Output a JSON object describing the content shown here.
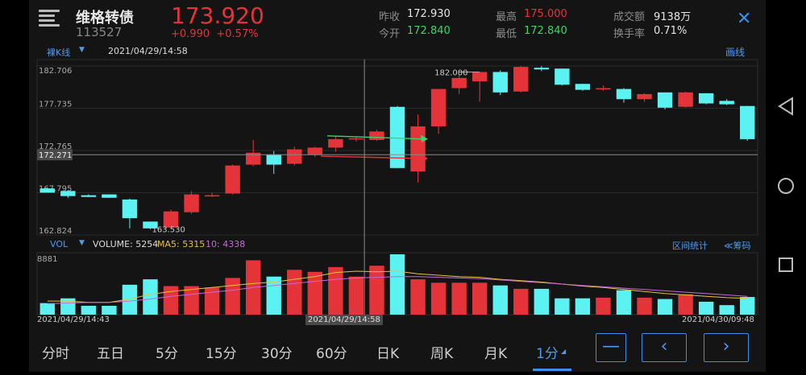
{
  "stock": {
    "name": "维格转债",
    "code": "113527",
    "price": "173.920",
    "change": "+0.990",
    "change_pct": "+0.57%"
  },
  "quote": {
    "prev_close_label": "昨收",
    "prev_close": "172.930",
    "open_label": "今开",
    "open": "172.840",
    "high_label": "最高",
    "high": "175.000",
    "low_label": "最低",
    "low": "172.840",
    "volume_label": "成交额",
    "volume": "9138万",
    "turnover_label": "换手率",
    "turnover": "0.71%"
  },
  "chart_toolbar": {
    "kline_type": "裸K线",
    "crosshair_time": "2021/04/29/14:58",
    "draw_label": "画线"
  },
  "price_axis": {
    "ticks": [
      "182.706",
      "177.735",
      "172.765",
      "167.795",
      "162.824"
    ],
    "crosshair_value": "172.271",
    "high_annotation": "182.000",
    "low_annotation": "163.530"
  },
  "volume_toolbar": {
    "label": "VOL",
    "volume_text": "VOLUME: 5254",
    "ma5_text": "MA5: 5315",
    "ma10_text": "10: 4338",
    "interval_stats": "区间统计",
    "chips": "≪筹码",
    "max_tick": "8881"
  },
  "time_axis": {
    "start": "2021/04/29/14:43",
    "cursor": "2021/04/29/14:58",
    "end": "2021/04/30/09:48"
  },
  "period_tabs": [
    "分时",
    "五日",
    "5分",
    "15分",
    "30分",
    "60分",
    "日K",
    "周K",
    "月K",
    "1分"
  ],
  "active_tab": "1分",
  "colors": {
    "up": "#e5333a",
    "down": "#5cf2f2",
    "accent": "#3b8eea",
    "ma5": "#e8c23a",
    "ma10": "#c86ad8"
  },
  "icons": {
    "menu": "menu-icon",
    "close": "close-icon",
    "zoom_out": "minus-icon",
    "prev": "chevron-left-icon",
    "next": "chevron-right-icon",
    "sys_back": "back-triangle-icon",
    "sys_home": "home-circle-icon",
    "sys_recent": "recent-square-icon"
  },
  "chart_data": {
    "type": "candlestick",
    "price_range": [
      162.824,
      182.706
    ],
    "volume_max": 8881,
    "candles": [
      {
        "o": 168.3,
        "c": 167.8,
        "h": 168.3,
        "l": 167.8,
        "v": 1700
      },
      {
        "o": 168.0,
        "c": 167.4,
        "h": 168.1,
        "l": 167.2,
        "v": 2400
      },
      {
        "o": 167.5,
        "c": 167.3,
        "h": 167.6,
        "l": 167.3,
        "v": 1300
      },
      {
        "o": 167.6,
        "c": 167.2,
        "h": 167.6,
        "l": 167.2,
        "v": 1300
      },
      {
        "o": 167.0,
        "c": 164.8,
        "h": 167.1,
        "l": 163.6,
        "v": 4400
      },
      {
        "o": 164.4,
        "c": 163.6,
        "h": 164.4,
        "l": 163.5,
        "v": 5200
      },
      {
        "o": 163.7,
        "c": 165.6,
        "h": 165.8,
        "l": 163.6,
        "v": 4200
      },
      {
        "o": 165.5,
        "c": 167.6,
        "h": 168.0,
        "l": 165.3,
        "v": 4200
      },
      {
        "o": 167.5,
        "c": 167.5,
        "h": 167.8,
        "l": 167.3,
        "v": 4000
      },
      {
        "o": 167.7,
        "c": 171.0,
        "h": 171.1,
        "l": 167.6,
        "v": 5400
      },
      {
        "o": 171.1,
        "c": 172.5,
        "h": 174.0,
        "l": 170.9,
        "v": 8000
      },
      {
        "o": 172.3,
        "c": 171.1,
        "h": 172.7,
        "l": 170.0,
        "v": 5600
      },
      {
        "o": 171.2,
        "c": 172.9,
        "h": 173.2,
        "l": 171.0,
        "v": 6600
      },
      {
        "o": 172.3,
        "c": 173.1,
        "h": 173.2,
        "l": 172.0,
        "v": 6300
      },
      {
        "o": 173.1,
        "c": 174.1,
        "h": 174.4,
        "l": 172.6,
        "v": 7000
      },
      {
        "o": 174.1,
        "c": 174.2,
        "h": 174.3,
        "l": 173.8,
        "v": 5600
      },
      {
        "o": 174.0,
        "c": 175.0,
        "h": 175.2,
        "l": 173.9,
        "v": 7200
      },
      {
        "o": 177.9,
        "c": 170.7,
        "h": 178.0,
        "l": 170.7,
        "v": 8881
      },
      {
        "o": 170.3,
        "c": 175.6,
        "h": 177.0,
        "l": 169.0,
        "v": 5200
      },
      {
        "o": 175.6,
        "c": 180.0,
        "h": 180.0,
        "l": 174.7,
        "v": 4700
      },
      {
        "o": 180.1,
        "c": 181.3,
        "h": 181.7,
        "l": 179.4,
        "v": 4700
      },
      {
        "o": 180.9,
        "c": 182.0,
        "h": 182.0,
        "l": 178.5,
        "v": 4700
      },
      {
        "o": 182.0,
        "c": 179.6,
        "h": 182.2,
        "l": 179.3,
        "v": 4300
      },
      {
        "o": 179.7,
        "c": 182.6,
        "h": 182.7,
        "l": 179.6,
        "v": 3800
      },
      {
        "o": 182.5,
        "c": 182.3,
        "h": 182.7,
        "l": 182.1,
        "v": 3800
      },
      {
        "o": 182.4,
        "c": 180.5,
        "h": 182.4,
        "l": 180.4,
        "v": 2400
      },
      {
        "o": 180.6,
        "c": 179.9,
        "h": 180.6,
        "l": 179.8,
        "v": 2400
      },
      {
        "o": 180.1,
        "c": 180.1,
        "h": 180.4,
        "l": 179.8,
        "v": 2500
      },
      {
        "o": 180.0,
        "c": 178.8,
        "h": 180.1,
        "l": 178.4,
        "v": 3600
      },
      {
        "o": 178.8,
        "c": 179.4,
        "h": 179.5,
        "l": 178.5,
        "v": 2500
      },
      {
        "o": 179.6,
        "c": 177.8,
        "h": 179.6,
        "l": 177.6,
        "v": 2300
      },
      {
        "o": 177.9,
        "c": 179.6,
        "h": 179.7,
        "l": 177.8,
        "v": 3000
      },
      {
        "o": 179.5,
        "c": 178.3,
        "h": 179.5,
        "l": 178.2,
        "v": 1900
      },
      {
        "o": 178.6,
        "c": 178.2,
        "h": 178.8,
        "l": 178.1,
        "v": 1400
      },
      {
        "o": 178.0,
        "c": 174.1,
        "h": 178.0,
        "l": 173.9,
        "v": 2600
      }
    ],
    "ma5": [
      2000,
      2000,
      1800,
      1800,
      2300,
      3000,
      3400,
      3700,
      4000,
      4300,
      4600,
      4800,
      5200,
      5600,
      6200,
      6400,
      6300,
      6400,
      6000,
      5800,
      5600,
      5500,
      5200,
      5000,
      4800,
      4500,
      4200,
      4000,
      3700,
      3400,
      3100,
      2900,
      2700,
      2500,
      2400
    ],
    "ma10": [
      1600,
      1700,
      1800,
      1800,
      2000,
      2300,
      2700,
      3000,
      3300,
      3600,
      4000,
      4300,
      4600,
      4900,
      5200,
      5400,
      5500,
      5600,
      5600,
      5500,
      5400,
      5300,
      5100,
      4900,
      4700,
      4500,
      4300,
      4100,
      3900,
      3700,
      3500,
      3300,
      3100,
      2900,
      2700
    ]
  }
}
